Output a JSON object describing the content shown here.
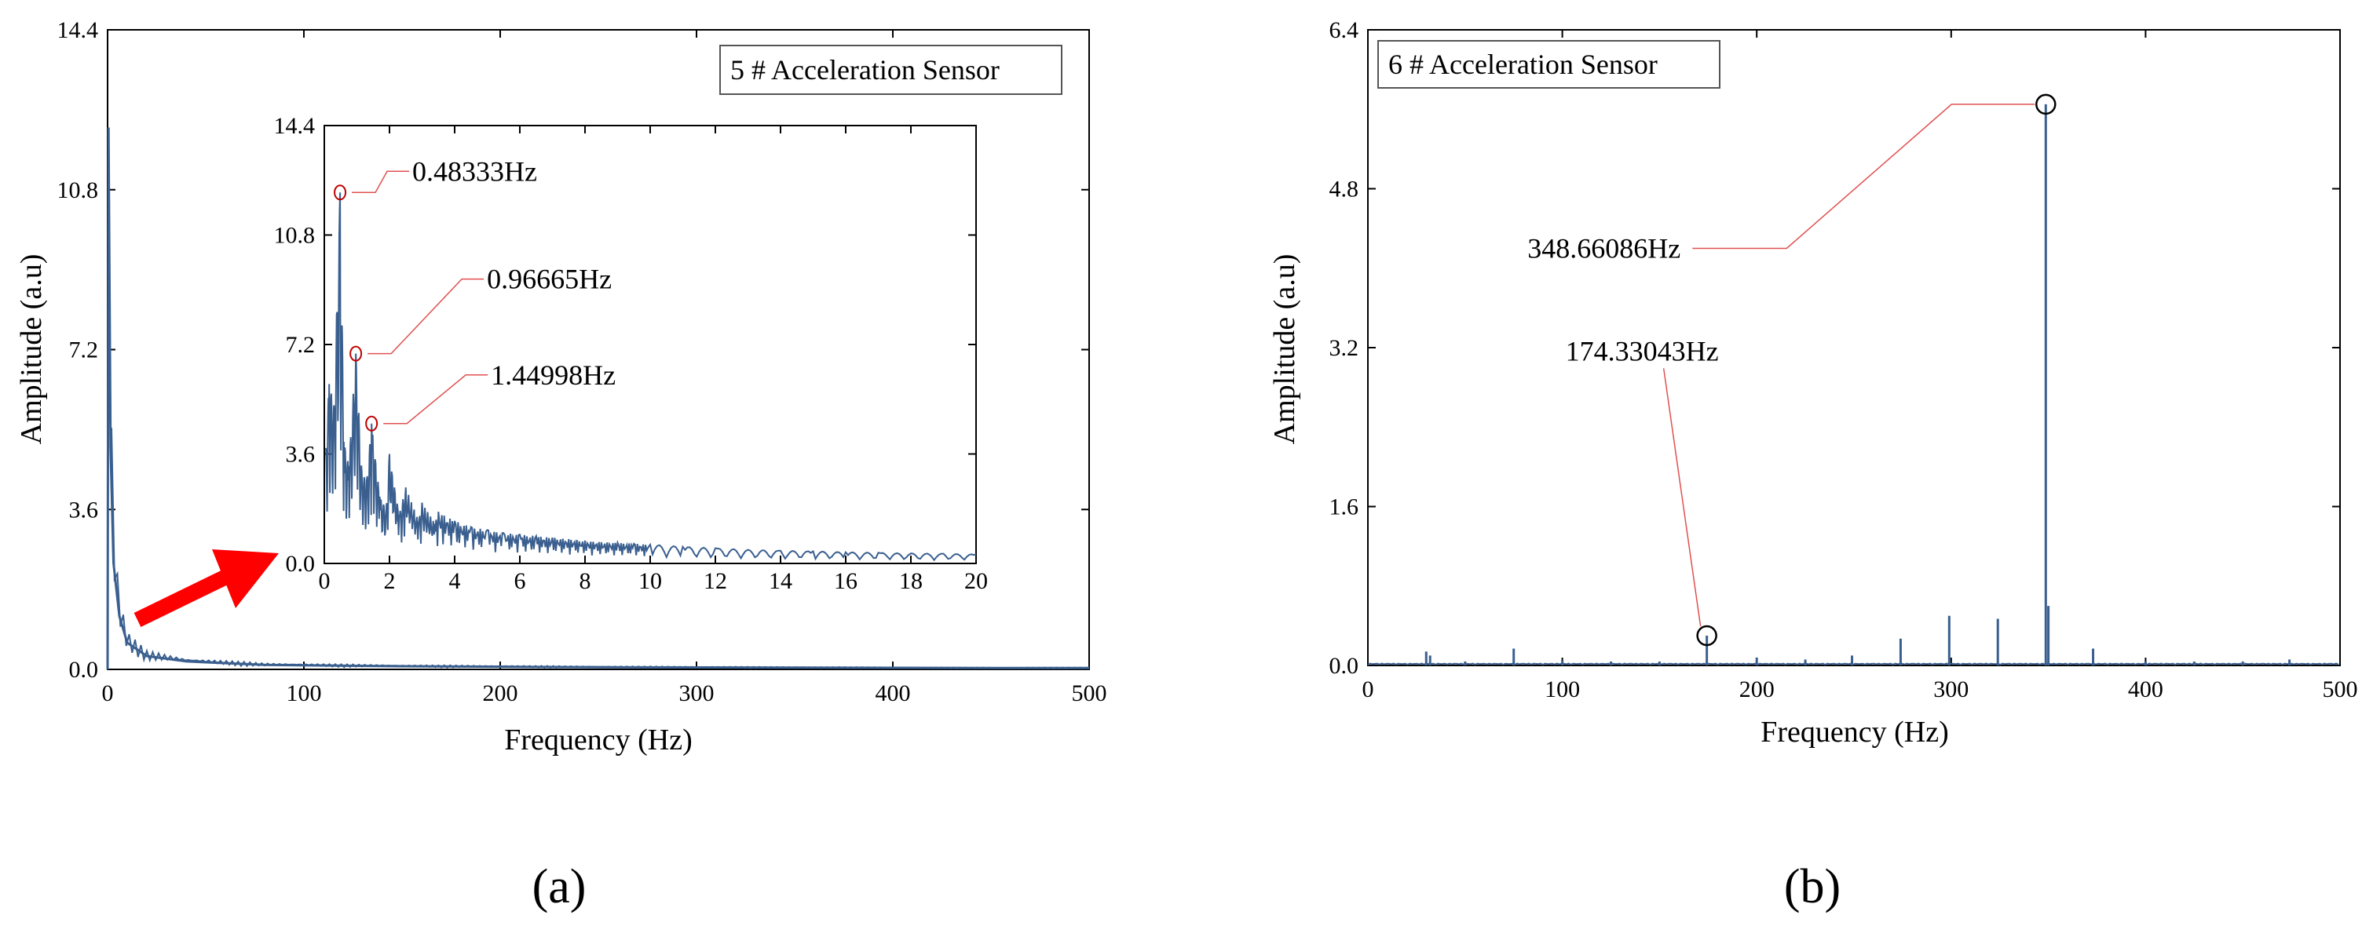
{
  "figure": {
    "panel_labels": [
      "(a)",
      "(b)"
    ]
  },
  "chart_data": [
    {
      "id": "a",
      "type": "line",
      "legend": "5 # Acceleration Sensor",
      "xlabel": "Frequency (Hz)",
      "ylabel": "Amplitude (a.u)",
      "xlim": [
        0,
        500
      ],
      "ylim": [
        0,
        14.4
      ],
      "xticks": [
        0,
        100,
        200,
        300,
        400,
        500
      ],
      "yticks": [
        "0.0",
        "3.6",
        "7.2",
        "10.8",
        "14.4"
      ],
      "color": "#3a5f8f",
      "series": [
        {
          "x": [
            0,
            0.48333,
            1.5,
            3,
            6,
            10,
            20,
            40,
            80,
            150,
            250,
            350,
            450,
            500
          ],
          "y": [
            0,
            12.2,
            5.0,
            2.4,
            1.2,
            0.6,
            0.3,
            0.18,
            0.1,
            0.07,
            0.05,
            0.04,
            0.03,
            0.03
          ]
        }
      ],
      "inset": {
        "xlim": [
          0,
          20
        ],
        "ylim": [
          0,
          14.4
        ],
        "xticks": [
          0,
          2,
          4,
          6,
          8,
          10,
          12,
          14,
          16,
          18,
          20
        ],
        "yticks": [
          "0.0",
          "3.6",
          "7.2",
          "10.8",
          "14.4"
        ],
        "peaks": [
          {
            "x": 0.48333,
            "y": 12.2,
            "label": "0.48333Hz"
          },
          {
            "x": 0.96665,
            "y": 6.9,
            "label": "0.96665Hz"
          },
          {
            "x": 1.44998,
            "y": 4.6,
            "label": "1.44998Hz"
          }
        ],
        "spectrum": [
          [
            0.05,
            3.8
          ],
          [
            0.15,
            5.9
          ],
          [
            0.3,
            5.2
          ],
          [
            0.48333,
            12.2
          ],
          [
            0.6,
            4.0
          ],
          [
            0.75,
            3.2
          ],
          [
            0.96665,
            6.9
          ],
          [
            1.15,
            3.0
          ],
          [
            1.3,
            2.7
          ],
          [
            1.44998,
            4.6
          ],
          [
            1.7,
            2.2
          ],
          [
            1.9,
            1.8
          ],
          [
            2.0,
            3.6
          ],
          [
            2.3,
            1.6
          ],
          [
            2.5,
            2.5
          ],
          [
            2.9,
            1.4
          ],
          [
            3.0,
            2.0
          ],
          [
            3.4,
            1.3
          ],
          [
            3.5,
            1.7
          ],
          [
            4.0,
            1.4
          ],
          [
            4.5,
            1.2
          ],
          [
            5.0,
            1.1
          ],
          [
            5.5,
            1.0
          ],
          [
            6.0,
            0.95
          ],
          [
            6.5,
            0.9
          ],
          [
            7.0,
            0.85
          ],
          [
            7.5,
            0.8
          ],
          [
            8.0,
            0.75
          ],
          [
            8.5,
            0.7
          ],
          [
            9.0,
            0.68
          ],
          [
            9.5,
            0.65
          ],
          [
            10.0,
            0.62
          ],
          [
            11.0,
            0.55
          ],
          [
            12.0,
            0.5
          ],
          [
            13.0,
            0.45
          ],
          [
            14.0,
            0.42
          ],
          [
            15.0,
            0.4
          ],
          [
            16.0,
            0.37
          ],
          [
            17.0,
            0.35
          ],
          [
            18.0,
            0.33
          ],
          [
            19.0,
            0.32
          ],
          [
            20.0,
            0.3
          ]
        ]
      }
    },
    {
      "id": "b",
      "type": "line",
      "legend": "6 # Acceleration Sensor",
      "xlabel": "Frequency (Hz)",
      "ylabel": "Amplitude (a.u)",
      "xlim": [
        0,
        500
      ],
      "ylim": [
        0,
        6.4
      ],
      "xticks": [
        0,
        100,
        200,
        300,
        400,
        500
      ],
      "yticks": [
        "0.0",
        "1.6",
        "3.2",
        "4.8",
        "6.4"
      ],
      "color": "#3a5f8f",
      "peaks": [
        {
          "x": 174.33043,
          "y": 0.3,
          "label": "174.33043Hz"
        },
        {
          "x": 348.66086,
          "y": 5.65,
          "label": "348.66086Hz"
        }
      ],
      "spikes": [
        [
          30,
          0.14
        ],
        [
          32,
          0.1
        ],
        [
          50,
          0.04
        ],
        [
          75,
          0.17
        ],
        [
          100,
          0.05
        ],
        [
          125,
          0.04
        ],
        [
          150,
          0.04
        ],
        [
          174.33043,
          0.3
        ],
        [
          200,
          0.08
        ],
        [
          225,
          0.06
        ],
        [
          249,
          0.1
        ],
        [
          274,
          0.27
        ],
        [
          299,
          0.5
        ],
        [
          324,
          0.47
        ],
        [
          348.66086,
          5.65
        ],
        [
          350,
          0.6
        ],
        [
          373,
          0.17
        ],
        [
          400,
          0.04
        ],
        [
          425,
          0.04
        ],
        [
          450,
          0.04
        ],
        [
          474,
          0.06
        ]
      ]
    }
  ]
}
